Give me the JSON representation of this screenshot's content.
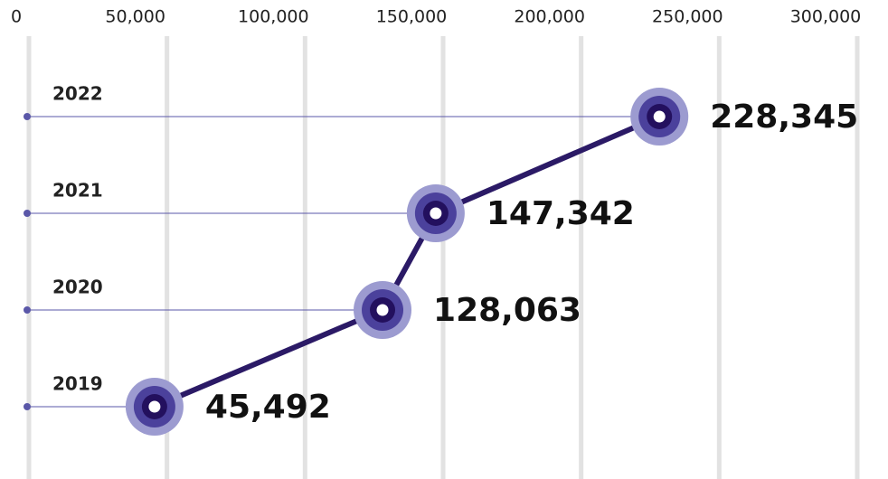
{
  "chart_data": {
    "type": "line",
    "categories": [
      "2019",
      "2020",
      "2021",
      "2022"
    ],
    "values": [
      45492,
      128063,
      147342,
      228345
    ],
    "value_labels": [
      "45,492",
      "128,063",
      "147,342",
      "228,345"
    ],
    "color": "#2b1a66",
    "xlim": [
      0,
      300000
    ],
    "xticks": [
      0,
      {
        "value": 50000,
        "label": "50,000"
      },
      {
        "value": 100000,
        "label": "100,000"
      },
      {
        "value": 150000,
        "label": "150,000"
      },
      {
        "value": 200000,
        "label": "200,000"
      },
      {
        "value": 250000,
        "label": "250,000"
      },
      {
        "value": 300000,
        "label": "300,000"
      }
    ],
    "grid": true
  }
}
